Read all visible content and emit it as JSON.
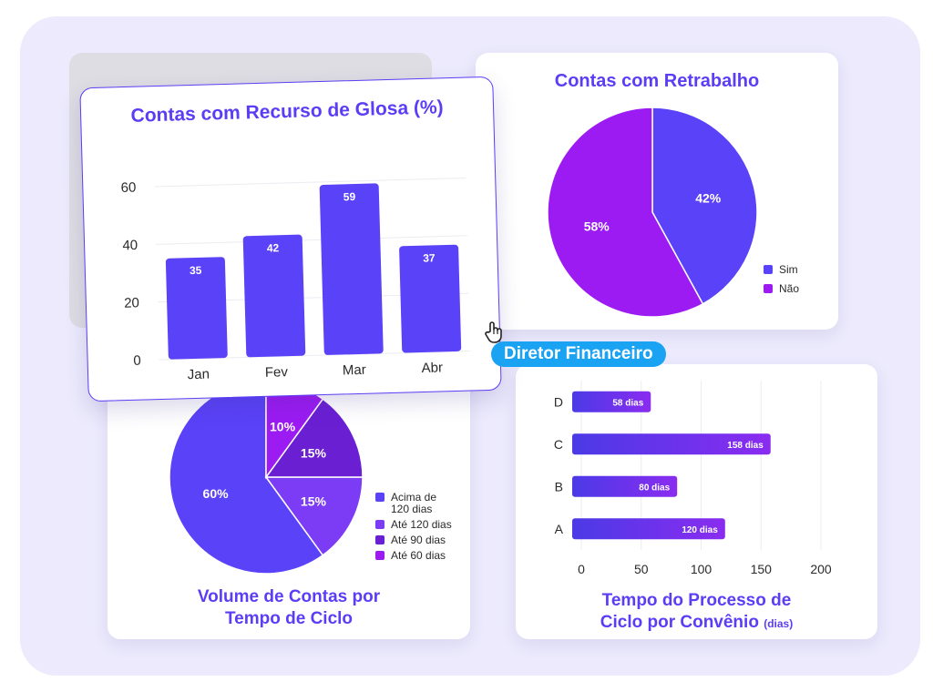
{
  "cards": {
    "glosa": {
      "title": "Contas com Recurso de Glosa (%)"
    },
    "retrabalho": {
      "title": "Contas com Retrabalho"
    },
    "volume": {
      "title_line1": "Volume de Contas por",
      "title_line2": "Tempo de Ciclo"
    },
    "processo": {
      "title_line1": "Tempo do Processo de",
      "title_line2": "Ciclo por Convênio",
      "unit": "(dias)"
    }
  },
  "badge": {
    "label": "Diretor Financeiro"
  },
  "icons": {
    "cursor": "hand-pointer-icon"
  },
  "colors": {
    "accent": "#5b3df5",
    "bar": "#5a42f8",
    "purple": "#9b1bf2",
    "deep": "#6a1fd3",
    "violet": "#7c3cf5",
    "badge": "#19a3f2"
  },
  "chart_data": [
    {
      "id": "glosa",
      "type": "bar",
      "title": "Contas com Recurso de Glosa (%)",
      "categories": [
        "Jan",
        "Fev",
        "Mar",
        "Abr"
      ],
      "values": [
        35,
        42,
        59,
        37
      ],
      "ylim": [
        0,
        65
      ],
      "yticks": [
        0,
        20,
        40,
        60
      ],
      "grid": true
    },
    {
      "id": "retrabalho",
      "type": "pie",
      "title": "Contas com Retrabalho",
      "labels": [
        "Sim",
        "Não"
      ],
      "values": [
        42,
        58
      ],
      "value_labels": [
        "42%",
        "58%"
      ],
      "colors": [
        "#5a42f8",
        "#9b1bf2"
      ],
      "legend": "bottom-right"
    },
    {
      "id": "volume",
      "type": "pie",
      "title": "Volume de Contas por Tempo de Ciclo",
      "labels": [
        "Acima de 120 dias",
        "Até 120 dias",
        "Até 90 dias",
        "Até 60 dias"
      ],
      "legend_lines": [
        [
          "Acima de",
          "120 dias"
        ],
        [
          "Até 120 dias"
        ],
        [
          "Até 90 dias"
        ],
        [
          "Até 60 dias"
        ]
      ],
      "values": [
        60,
        15,
        15,
        10
      ],
      "value_labels": [
        "60%",
        "15%",
        "15%",
        "10%"
      ],
      "colors": [
        "#5a42f8",
        "#7c3cf5",
        "#6a1fd3",
        "#9b1bf2"
      ],
      "legend": "right"
    },
    {
      "id": "processo",
      "type": "bar",
      "orientation": "horizontal",
      "title": "Tempo do Processo de Ciclo por Convênio (dias)",
      "categories": [
        "A",
        "B",
        "C",
        "D"
      ],
      "values": [
        120,
        80,
        158,
        58
      ],
      "value_labels": [
        "120 dias",
        "80 dias",
        "158 dias",
        "58 dias"
      ],
      "xlim": [
        0,
        200
      ],
      "xticks": [
        0,
        50,
        100,
        150,
        200
      ],
      "grid": true
    }
  ]
}
